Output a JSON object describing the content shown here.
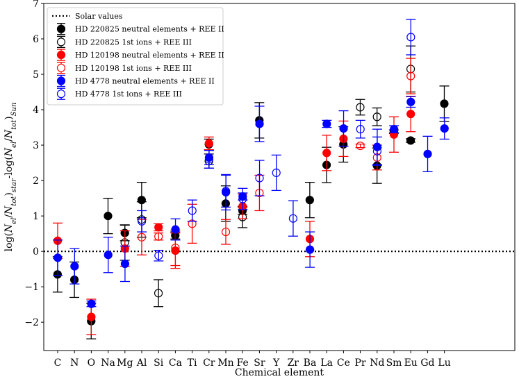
{
  "chart_data": {
    "type": "scatter",
    "xlabel": "Chemical element",
    "ylabel": "log(N_el/N_tot)_star - log(N_el/N_tot)_Sun",
    "ylim": [
      -2.8,
      7
    ],
    "yticks": [
      -2,
      -1,
      0,
      1,
      2,
      3,
      4,
      5,
      6,
      7
    ],
    "grid": false,
    "legend_position": "top-left",
    "categories": [
      "C",
      "N",
      "O",
      "Na",
      "Mg",
      "Al",
      "Si",
      "Ca",
      "Ti",
      "Cr",
      "Mn",
      "Fe",
      "Sr",
      "Y",
      "Zr",
      "Ba",
      "La",
      "Ce",
      "Pr",
      "Nd",
      "Sm",
      "Eu",
      "Gd",
      "Lu"
    ],
    "reference_line": {
      "name": "Solar values",
      "y": 0,
      "style": "dotted",
      "color": "#000000"
    },
    "series": [
      {
        "name": "HD 220825 neutral elements + REE II",
        "color": "#000000",
        "filled": true,
        "offset": -0.13,
        "points": [
          {
            "x": "C",
            "y": -0.65,
            "err": 0.5
          },
          {
            "x": "N",
            "y": -0.8,
            "err": 0.5
          },
          {
            "x": "O",
            "y": -1.97,
            "err": 0.5
          },
          {
            "x": "Na",
            "y": 1.0,
            "err": 0.5
          },
          {
            "x": "Mg",
            "y": 0.52,
            "err": 0.22
          },
          {
            "x": "Al",
            "y": 1.45,
            "err": 0.5
          },
          {
            "x": "Ca",
            "y": 0.45,
            "err": 0.1
          },
          {
            "x": "Cr",
            "y": 3.02,
            "err": 0.15
          },
          {
            "x": "Mn",
            "y": 1.35,
            "err": 0.5
          },
          {
            "x": "Fe",
            "y": 1.15,
            "err": 0.1
          },
          {
            "x": "Sr",
            "y": 3.7,
            "err": 0.5
          },
          {
            "x": "Ba",
            "y": 1.45,
            "err": 0.5
          },
          {
            "x": "La",
            "y": 2.44,
            "err": 0.5
          },
          {
            "x": "Ce",
            "y": 3.02,
            "err": 0.5
          },
          {
            "x": "Nd",
            "y": 2.42,
            "err": 0.5
          },
          {
            "x": "Sm",
            "y": 3.38,
            "err": 0.05
          },
          {
            "x": "Eu",
            "y": 3.13,
            "err": 0.05
          },
          {
            "x": "Lu",
            "y": 4.17,
            "err": 0.5
          }
        ]
      },
      {
        "name": "HD 220825 1st ions + REE III",
        "color": "#000000",
        "filled": false,
        "offset": -0.13,
        "points": [
          {
            "x": "Mg",
            "y": 0.25,
            "err": 0.5
          },
          {
            "x": "Al",
            "y": 0.9,
            "err": 0.5
          },
          {
            "x": "Si",
            "y": -1.18,
            "err": 0.38
          },
          {
            "x": "Cr",
            "y": 2.55,
            "err": 0.2
          },
          {
            "x": "Fe",
            "y": 0.97,
            "err": 0.3
          },
          {
            "x": "Pr",
            "y": 4.07,
            "err": 0.22
          },
          {
            "x": "Nd",
            "y": 3.8,
            "err": 0.25
          },
          {
            "x": "Eu",
            "y": 5.15,
            "err": 0.65
          }
        ]
      },
      {
        "name": "HD 120198 neutral elements + REE II",
        "color": "#ff0000",
        "filled": true,
        "offset": 0,
        "points": [
          {
            "x": "C",
            "y": 0.3,
            "err": 0.5
          },
          {
            "x": "O",
            "y": -1.85,
            "err": 0.5
          },
          {
            "x": "Mg",
            "y": 0.08,
            "err": 0.5
          },
          {
            "x": "Si",
            "y": 0.68,
            "err": 0.1
          },
          {
            "x": "Ca",
            "y": 0.02,
            "err": 0.5
          },
          {
            "x": "Cr",
            "y": 3.05,
            "err": 0.18
          },
          {
            "x": "Fe",
            "y": 1.27,
            "err": 0.35
          },
          {
            "x": "Ba",
            "y": 0.35,
            "err": 0.5
          },
          {
            "x": "La",
            "y": 2.78,
            "err": 0.5
          },
          {
            "x": "Ce",
            "y": 3.18,
            "err": 0.5
          },
          {
            "x": "Sm",
            "y": 3.3,
            "err": 0.5
          },
          {
            "x": "Eu",
            "y": 3.88,
            "err": 0.5
          }
        ]
      },
      {
        "name": "HD 120198 1st ions + REE III",
        "color": "#ff0000",
        "filled": false,
        "offset": 0,
        "points": [
          {
            "x": "Al",
            "y": 0.4,
            "err": 0.5
          },
          {
            "x": "Si",
            "y": 0.42,
            "err": 0.1
          },
          {
            "x": "Ca",
            "y": 0.1,
            "err": 0.5
          },
          {
            "x": "Ti",
            "y": 0.78,
            "err": 0.55
          },
          {
            "x": "Mn",
            "y": 0.55,
            "err": 0.35
          },
          {
            "x": "Sr",
            "y": 1.65,
            "err": 0.5
          },
          {
            "x": "Pr",
            "y": 2.98,
            "err": 0.05
          },
          {
            "x": "Nd",
            "y": 2.65,
            "err": 0.35
          },
          {
            "x": "Eu",
            "y": 4.95,
            "err": 0.5
          }
        ]
      },
      {
        "name": "HD 4778 neutral elements + REE II",
        "color": "#0000ff",
        "filled": true,
        "offset": 0.13,
        "points": [
          {
            "x": "C",
            "y": -0.18,
            "err": 0.5
          },
          {
            "x": "N",
            "y": -0.42,
            "err": 0.5
          },
          {
            "x": "O",
            "y": -1.48,
            "err": 0.08
          },
          {
            "x": "Na",
            "y": -0.1,
            "err": 0.5
          },
          {
            "x": "Mg",
            "y": -0.35,
            "err": 0.5
          },
          {
            "x": "Ca",
            "y": 0.62,
            "err": 0.3
          },
          {
            "x": "Cr",
            "y": 2.65,
            "err": 0.2
          },
          {
            "x": "Mn",
            "y": 1.67,
            "err": 0.5
          },
          {
            "x": "Fe",
            "y": 1.55,
            "err": 0.1
          },
          {
            "x": "Sr",
            "y": 3.6,
            "err": 0.5
          },
          {
            "x": "Ba",
            "y": 0.05,
            "err": 0.5
          },
          {
            "x": "La",
            "y": 3.6,
            "err": 0.1
          },
          {
            "x": "Ce",
            "y": 3.47,
            "err": 0.5
          },
          {
            "x": "Nd",
            "y": 2.95,
            "err": 0.5
          },
          {
            "x": "Sm",
            "y": 3.45,
            "err": 0.1
          },
          {
            "x": "Eu",
            "y": 4.22,
            "err": 0.15
          },
          {
            "x": "Gd",
            "y": 2.75,
            "err": 0.5
          },
          {
            "x": "Lu",
            "y": 3.47,
            "err": 0.3
          }
        ]
      },
      {
        "name": "HD 4778 1st ions + REE III",
        "color": "#0000ff",
        "filled": false,
        "offset": 0.13,
        "points": [
          {
            "x": "Al",
            "y": 0.85,
            "err": 0.3
          },
          {
            "x": "Si",
            "y": -0.12,
            "err": 0.15
          },
          {
            "x": "Ti",
            "y": 1.15,
            "err": 0.3
          },
          {
            "x": "Cr",
            "y": 2.6,
            "err": 0.25
          },
          {
            "x": "Mn",
            "y": 1.7,
            "err": 0.45
          },
          {
            "x": "Fe",
            "y": 1.48,
            "err": 0.3
          },
          {
            "x": "Sr",
            "y": 2.07,
            "err": 0.5
          },
          {
            "x": "Y",
            "y": 2.22,
            "err": 0.5
          },
          {
            "x": "Zr",
            "y": 0.93,
            "err": 0.5
          },
          {
            "x": "Pr",
            "y": 3.45,
            "err": 0.25
          },
          {
            "x": "Nd",
            "y": 2.83,
            "err": 0.4
          },
          {
            "x": "Eu",
            "y": 6.05,
            "err": 0.5
          }
        ]
      }
    ]
  }
}
